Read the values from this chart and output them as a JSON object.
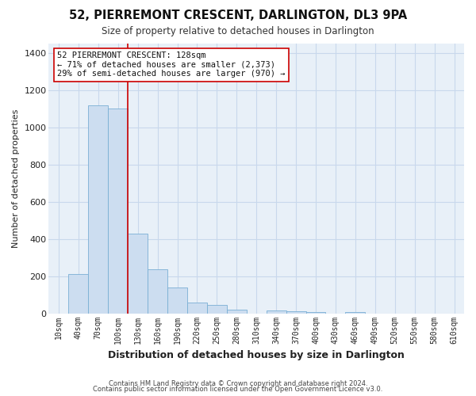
{
  "title": "52, PIERREMONT CRESCENT, DARLINGTON, DL3 9PA",
  "subtitle": "Size of property relative to detached houses in Darlington",
  "xlabel": "Distribution of detached houses by size in Darlington",
  "ylabel": "Number of detached properties",
  "bar_labels": [
    "10sqm",
    "40sqm",
    "70sqm",
    "100sqm",
    "130sqm",
    "160sqm",
    "190sqm",
    "220sqm",
    "250sqm",
    "280sqm",
    "310sqm",
    "340sqm",
    "370sqm",
    "400sqm",
    "430sqm",
    "460sqm",
    "490sqm",
    "520sqm",
    "550sqm",
    "580sqm",
    "610sqm"
  ],
  "bar_values": [
    0,
    210,
    1120,
    1100,
    430,
    235,
    140,
    60,
    45,
    20,
    0,
    15,
    10,
    5,
    0,
    5,
    0,
    0,
    0,
    0,
    0
  ],
  "bar_color": "#ccddf0",
  "bar_edge_color": "#7aafd4",
  "vline_x": 3.5,
  "vline_color": "#cc0000",
  "ylim": [
    0,
    1450
  ],
  "yticks": [
    0,
    200,
    400,
    600,
    800,
    1000,
    1200,
    1400
  ],
  "annotation_text": "52 PIERREMONT CRESCENT: 128sqm\n← 71% of detached houses are smaller (2,373)\n29% of semi-detached houses are larger (970) →",
  "annotation_box_color": "#ffffff",
  "annotation_box_edge": "#cc0000",
  "footer1": "Contains HM Land Registry data © Crown copyright and database right 2024.",
  "footer2": "Contains public sector information licensed under the Open Government Licence v3.0.",
  "background_color": "#ffffff",
  "grid_color": "#c8d8ec",
  "plot_bg_color": "#e8f0f8"
}
